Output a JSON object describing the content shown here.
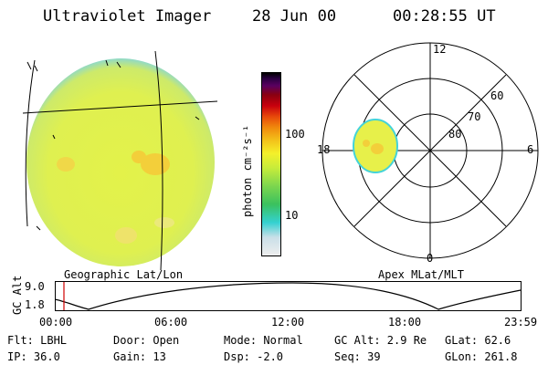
{
  "header": {
    "instrument": "Ultraviolet Imager",
    "date": "28 Jun 00",
    "time": "00:28:55 UT"
  },
  "panels": {
    "geo_label": "Geographic Lat/Lon",
    "apex_label": "Apex MLat/MLT"
  },
  "colorbar": {
    "unit_label": "photon cm⁻²s⁻¹",
    "ticks": [
      "100",
      "10"
    ],
    "colors": [
      "#eeeeee",
      "#c9dfe8",
      "#34d1d1",
      "#3ac15e",
      "#7cd64e",
      "#c7ec3a",
      "#f4f02a",
      "#f3c21a",
      "#f08a0c",
      "#e84a0a",
      "#c8000d",
      "#8a0010",
      "#5a0060",
      "#2a0040",
      "#000000"
    ]
  },
  "polar": {
    "mlt_labels": [
      "12",
      "18",
      "6",
      "0"
    ],
    "lat_labels": [
      "60",
      "70",
      "80"
    ]
  },
  "altitude_plot": {
    "ylabel": "GC Alt",
    "yticks": [
      "9.0",
      "1.8"
    ],
    "xticks": [
      "00:00",
      "06:00",
      "12:00",
      "18:00",
      "23:59"
    ]
  },
  "info": {
    "rows": [
      [
        "Flt: LBHL",
        "Door: Open",
        "Mode: Normal",
        "GC Alt: 2.9 Re",
        "GLat:  62.6"
      ],
      [
        "IP: 36.0",
        "Gain: 13",
        "Dsp:   -2.0",
        "Seq: 39",
        "GLon: 261.8"
      ]
    ]
  }
}
